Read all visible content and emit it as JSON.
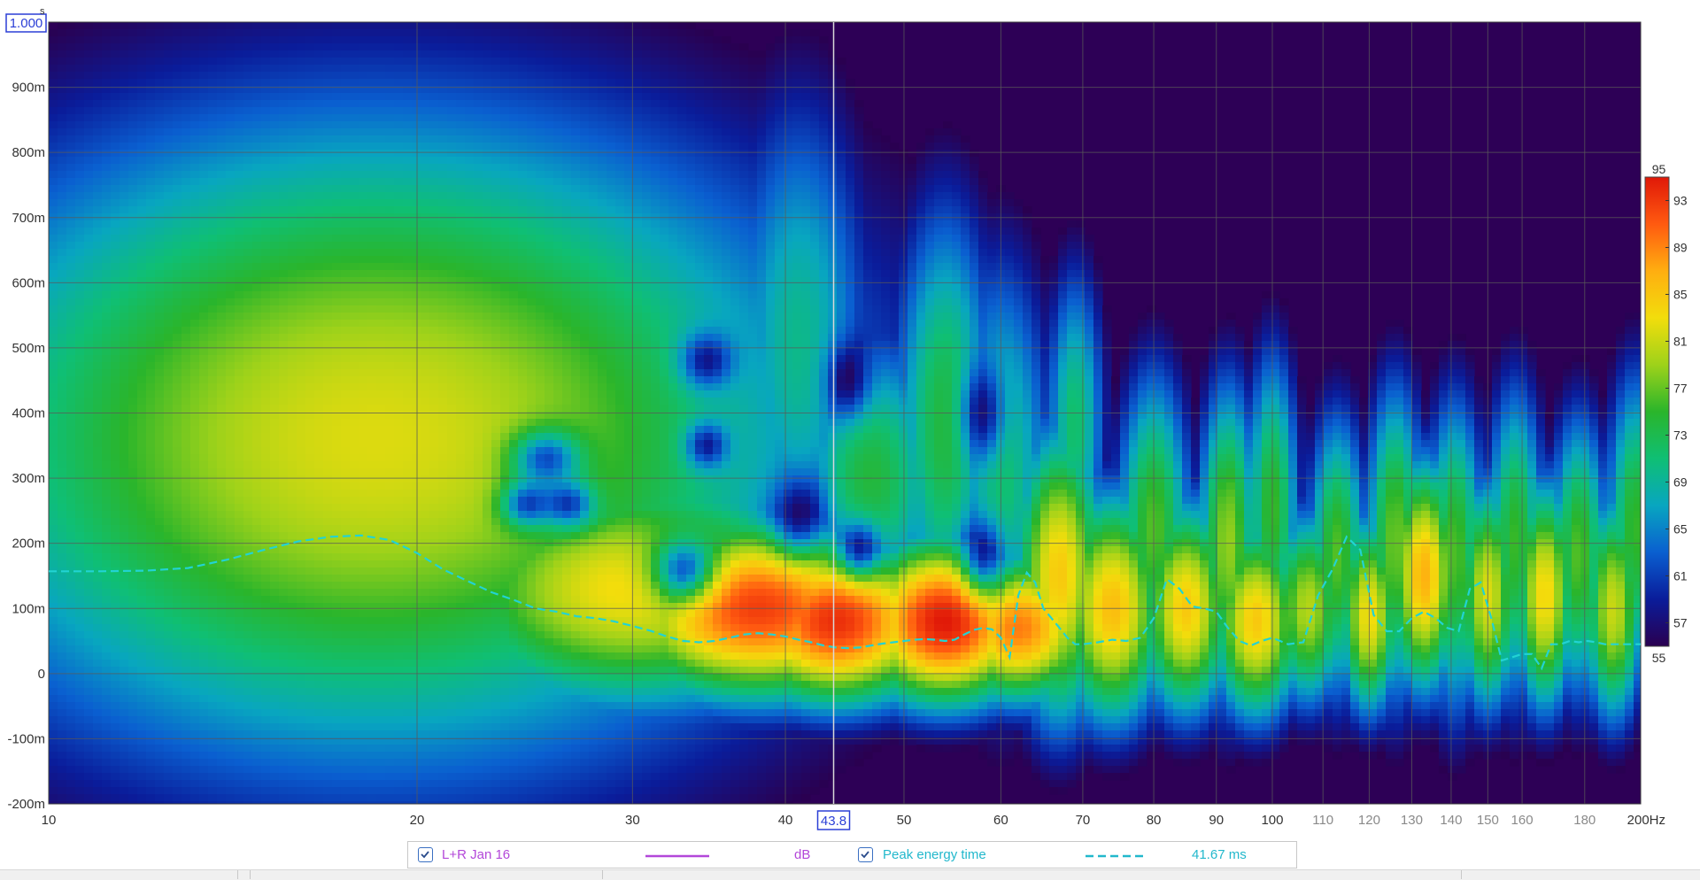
{
  "chart_data": {
    "type": "heatmap",
    "title": "",
    "xlabel": "",
    "ylabel": "",
    "x_scale": "log",
    "x_unit": "Hz",
    "xlim": [
      10,
      200
    ],
    "ylim": [
      -0.2,
      1.0
    ],
    "x_ticks": [
      {
        "value": 10,
        "label": "10"
      },
      {
        "value": 20,
        "label": "20"
      },
      {
        "value": 30,
        "label": "30"
      },
      {
        "value": 40,
        "label": "40"
      },
      {
        "value": 50,
        "label": "50"
      },
      {
        "value": 60,
        "label": "60"
      },
      {
        "value": 70,
        "label": "70"
      },
      {
        "value": 80,
        "label": "80"
      },
      {
        "value": 90,
        "label": "90"
      },
      {
        "value": 100,
        "label": "100"
      },
      {
        "value": 110,
        "label": "110"
      },
      {
        "value": 120,
        "label": "120"
      },
      {
        "value": 130,
        "label": "130"
      },
      {
        "value": 140,
        "label": "140"
      },
      {
        "value": 150,
        "label": "150"
      },
      {
        "value": 160,
        "label": "160"
      },
      {
        "value": 180,
        "label": "180"
      },
      {
        "value": 200,
        "label": "200Hz"
      }
    ],
    "y_ticks": [
      {
        "value": -0.2,
        "label": "-200m"
      },
      {
        "value": -0.1,
        "label": "-100m"
      },
      {
        "value": 0.0,
        "label": "0"
      },
      {
        "value": 0.1,
        "label": "100m"
      },
      {
        "value": 0.2,
        "label": "200m"
      },
      {
        "value": 0.3,
        "label": "300m"
      },
      {
        "value": 0.4,
        "label": "400m"
      },
      {
        "value": 0.5,
        "label": "500m"
      },
      {
        "value": 0.6,
        "label": "600m"
      },
      {
        "value": 0.7,
        "label": "700m"
      },
      {
        "value": 0.8,
        "label": "800m"
      },
      {
        "value": 0.9,
        "label": "900m"
      }
    ],
    "y_top_label": "1.000",
    "y_unit_mark": "s",
    "cursor_x": 43.8,
    "cursor_label": "43.8",
    "grid": true,
    "colorbar": {
      "min": 55,
      "max": 95,
      "ticks": [
        95,
        93,
        89,
        85,
        81,
        77,
        73,
        69,
        65,
        61,
        57,
        55
      ],
      "colors": [
        "#2a0050",
        "#0a1c9a",
        "#0a5fd0",
        "#08a6c0",
        "#0fbf74",
        "#2ab52b",
        "#9ed21a",
        "#f2dd0c",
        "#ffae10",
        "#ff5a10",
        "#e01808"
      ]
    },
    "background_color": "#2d0056",
    "peaks": [
      {
        "f": 18.5,
        "t": 0.36,
        "level": 0.72,
        "sf": 0.3,
        "st": 0.4
      },
      {
        "f": 20.5,
        "t": 0.55,
        "level": 0.52,
        "sf": 0.16,
        "st": 0.3
      },
      {
        "f": 15.5,
        "t": 0.3,
        "level": 0.55,
        "sf": 0.17,
        "st": 0.28
      },
      {
        "f": 24,
        "t": 0.2,
        "level": 0.6,
        "sf": 0.17,
        "st": 0.2
      },
      {
        "f": 30,
        "t": 0.13,
        "level": 0.75,
        "sf": 0.14,
        "st": 0.15
      },
      {
        "f": 33,
        "t": 0.33,
        "level": 0.5,
        "sf": 0.08,
        "st": 0.15
      },
      {
        "f": 38,
        "t": 0.1,
        "level": 0.95,
        "sf": 0.1,
        "st": 0.11
      },
      {
        "f": 41,
        "t": 0.5,
        "level": 0.46,
        "sf": 0.05,
        "st": 0.32
      },
      {
        "f": 44,
        "t": 0.08,
        "level": 0.97,
        "sf": 0.07,
        "st": 0.1
      },
      {
        "f": 47,
        "t": 0.3,
        "level": 0.55,
        "sf": 0.05,
        "st": 0.18
      },
      {
        "f": 54,
        "t": 0.08,
        "level": 1.0,
        "sf": 0.06,
        "st": 0.1
      },
      {
        "f": 54,
        "t": 0.38,
        "level": 0.55,
        "sf": 0.035,
        "st": 0.28
      },
      {
        "f": 60,
        "t": 0.3,
        "level": 0.5,
        "sf": 0.035,
        "st": 0.28
      },
      {
        "f": 62,
        "t": 0.07,
        "level": 0.88,
        "sf": 0.05,
        "st": 0.09
      },
      {
        "f": 67,
        "t": 0.15,
        "level": 0.78,
        "sf": 0.03,
        "st": 0.18
      },
      {
        "f": 69,
        "t": 0.38,
        "level": 0.5,
        "sf": 0.02,
        "st": 0.2
      },
      {
        "f": 74,
        "t": 0.1,
        "level": 0.8,
        "sf": 0.035,
        "st": 0.14
      },
      {
        "f": 80,
        "t": 0.22,
        "level": 0.6,
        "sf": 0.025,
        "st": 0.2
      },
      {
        "f": 85,
        "t": 0.1,
        "level": 0.78,
        "sf": 0.03,
        "st": 0.13
      },
      {
        "f": 92,
        "t": 0.2,
        "level": 0.65,
        "sf": 0.02,
        "st": 0.2
      },
      {
        "f": 97,
        "t": 0.08,
        "level": 0.78,
        "sf": 0.03,
        "st": 0.12
      },
      {
        "f": 100,
        "t": 0.25,
        "level": 0.58,
        "sf": 0.018,
        "st": 0.2
      },
      {
        "f": 107,
        "t": 0.1,
        "level": 0.68,
        "sf": 0.025,
        "st": 0.12
      },
      {
        "f": 113,
        "t": 0.18,
        "level": 0.6,
        "sf": 0.02,
        "st": 0.18
      },
      {
        "f": 120,
        "t": 0.09,
        "level": 0.75,
        "sf": 0.02,
        "st": 0.12
      },
      {
        "f": 126,
        "t": 0.2,
        "level": 0.62,
        "sf": 0.02,
        "st": 0.2
      },
      {
        "f": 133,
        "t": 0.15,
        "level": 0.82,
        "sf": 0.022,
        "st": 0.14
      },
      {
        "f": 141,
        "t": 0.18,
        "level": 0.6,
        "sf": 0.02,
        "st": 0.2
      },
      {
        "f": 150,
        "t": 0.12,
        "level": 0.72,
        "sf": 0.02,
        "st": 0.14
      },
      {
        "f": 158,
        "t": 0.2,
        "level": 0.58,
        "sf": 0.02,
        "st": 0.2
      },
      {
        "f": 167,
        "t": 0.12,
        "level": 0.76,
        "sf": 0.02,
        "st": 0.14
      },
      {
        "f": 178,
        "t": 0.18,
        "level": 0.6,
        "sf": 0.02,
        "st": 0.18
      },
      {
        "f": 190,
        "t": 0.1,
        "level": 0.7,
        "sf": 0.02,
        "st": 0.14
      },
      {
        "f": 198,
        "t": 0.22,
        "level": 0.58,
        "sf": 0.02,
        "st": 0.2
      }
    ],
    "holes": [
      {
        "f": 25.5,
        "t": 0.33,
        "sf": 0.02,
        "st": 0.03
      },
      {
        "f": 24.6,
        "t": 0.26,
        "sf": 0.015,
        "st": 0.025
      },
      {
        "f": 26.6,
        "t": 0.26,
        "sf": 0.015,
        "st": 0.025
      },
      {
        "f": 34.5,
        "t": 0.48,
        "sf": 0.015,
        "st": 0.03
      },
      {
        "f": 34.5,
        "t": 0.35,
        "sf": 0.012,
        "st": 0.025
      },
      {
        "f": 33.0,
        "t": 0.16,
        "sf": 0.018,
        "st": 0.035
      },
      {
        "f": 41,
        "t": 0.24,
        "sf": 0.015,
        "st": 0.04
      },
      {
        "f": 45,
        "t": 0.45,
        "sf": 0.012,
        "st": 0.04
      },
      {
        "f": 46,
        "t": 0.19,
        "sf": 0.012,
        "st": 0.03
      },
      {
        "f": 58,
        "t": 0.4,
        "sf": 0.012,
        "st": 0.05
      },
      {
        "f": 58,
        "t": 0.18,
        "sf": 0.012,
        "st": 0.04
      }
    ],
    "series": [
      {
        "name": "Peak energy time",
        "style": "dashed",
        "color": "#22d3d3",
        "x": [
          10,
          11,
          12,
          13,
          14,
          15,
          16,
          17,
          18,
          19,
          20,
          21,
          22,
          23,
          24,
          25,
          26,
          27,
          28,
          29,
          30,
          31,
          32,
          33,
          34,
          35,
          36,
          37,
          38,
          39,
          40,
          41,
          42,
          43,
          44,
          45,
          46,
          47,
          48,
          49,
          50,
          51,
          52,
          53,
          54,
          55,
          56,
          57,
          58,
          59,
          60,
          61,
          62,
          63,
          64,
          65,
          66,
          67,
          68,
          69,
          70,
          72,
          74,
          76,
          78,
          80,
          82,
          84,
          86,
          88,
          90,
          92,
          94,
          96,
          98,
          100,
          103,
          106,
          109,
          112,
          115,
          118,
          121,
          124,
          127,
          130,
          133,
          136,
          139,
          142,
          145,
          148,
          151,
          154,
          157,
          160,
          163,
          166,
          169,
          172,
          175,
          178,
          181,
          184,
          187,
          190,
          193,
          196,
          199,
          200
        ],
        "y": [
          0.157,
          0.157,
          0.158,
          0.162,
          0.175,
          0.19,
          0.203,
          0.21,
          0.212,
          0.205,
          0.185,
          0.16,
          0.142,
          0.125,
          0.113,
          0.1,
          0.095,
          0.088,
          0.085,
          0.08,
          0.073,
          0.066,
          0.057,
          0.05,
          0.048,
          0.05,
          0.055,
          0.06,
          0.062,
          0.06,
          0.057,
          0.052,
          0.048,
          0.043,
          0.04,
          0.039,
          0.04,
          0.043,
          0.046,
          0.048,
          0.05,
          0.052,
          0.053,
          0.052,
          0.05,
          0.052,
          0.06,
          0.067,
          0.07,
          0.068,
          0.055,
          0.025,
          0.12,
          0.155,
          0.14,
          0.1,
          0.085,
          0.07,
          0.055,
          0.045,
          0.045,
          0.048,
          0.052,
          0.05,
          0.055,
          0.085,
          0.145,
          0.13,
          0.103,
          0.1,
          0.095,
          0.07,
          0.05,
          0.043,
          0.05,
          0.055,
          0.045,
          0.048,
          0.12,
          0.16,
          0.21,
          0.19,
          0.09,
          0.065,
          0.065,
          0.085,
          0.095,
          0.085,
          0.07,
          0.065,
          0.13,
          0.14,
          0.085,
          0.02,
          0.025,
          0.03,
          0.03,
          0.008,
          0.045,
          0.045,
          0.05,
          0.048,
          0.05,
          0.048,
          0.045,
          0.045,
          0.045,
          0.045,
          0.045,
          0.045
        ]
      }
    ]
  },
  "legend": {
    "item1_label": "L+R Jan 16",
    "item1_unit": "dB",
    "item1_color": "#b347d9",
    "item2_label": "Peak energy time",
    "item2_value": "41.67 ms",
    "item2_color": "#22b8cc"
  }
}
